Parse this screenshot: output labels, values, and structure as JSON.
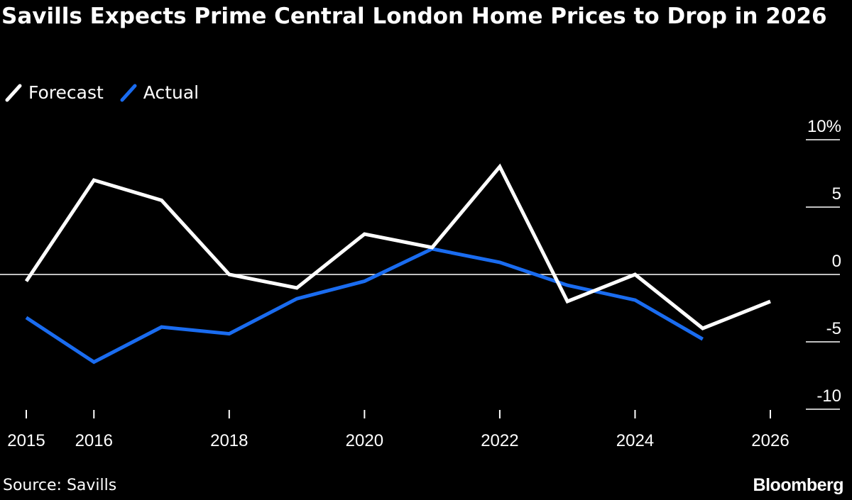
{
  "chart_data": {
    "type": "line",
    "title": "Savills Expects Prime Central London Home Prices to Drop in 2026",
    "xlabel": "",
    "ylabel": "",
    "ylim": [
      -10,
      10
    ],
    "xlim": [
      2015,
      2026
    ],
    "y_ticks": [
      {
        "value": 10,
        "label": "10%"
      },
      {
        "value": 5,
        "label": "5"
      },
      {
        "value": 0,
        "label": "0"
      },
      {
        "value": -5,
        "label": "-5"
      },
      {
        "value": -10,
        "label": "-10"
      }
    ],
    "x_ticks": [
      {
        "value": 2015,
        "label": "2015"
      },
      {
        "value": 2016,
        "label": "2016"
      },
      {
        "value": 2018,
        "label": "2018"
      },
      {
        "value": 2020,
        "label": "2020"
      },
      {
        "value": 2022,
        "label": "2022"
      },
      {
        "value": 2024,
        "label": "2024"
      },
      {
        "value": 2026,
        "label": "2026"
      }
    ],
    "series": [
      {
        "name": "Forecast",
        "color": "#ffffff",
        "x": [
          2015,
          2016,
          2017,
          2018,
          2019,
          2020,
          2021,
          2022,
          2023,
          2024,
          2025,
          2026
        ],
        "values": [
          -0.5,
          7.0,
          5.5,
          0.0,
          -1.0,
          3.0,
          2.0,
          8.0,
          -2.0,
          0.0,
          -4.0,
          -2.0
        ]
      },
      {
        "name": "Actual",
        "color": "#1a6cf0",
        "x": [
          2015,
          2016,
          2017,
          2018,
          2019,
          2020,
          2021,
          2022,
          2023,
          2024,
          2025
        ],
        "values": [
          -3.2,
          -6.5,
          -3.9,
          -4.4,
          -1.8,
          -0.5,
          1.9,
          0.9,
          -0.8,
          -1.9,
          -4.8
        ]
      }
    ],
    "zero_line": true,
    "legend_position": "top-left"
  },
  "legend": {
    "items": [
      {
        "label": "Forecast",
        "color": "#ffffff"
      },
      {
        "label": "Actual",
        "color": "#1a6cf0"
      }
    ]
  },
  "footer": {
    "source": "Source: Savills",
    "brand": "Bloomberg"
  }
}
